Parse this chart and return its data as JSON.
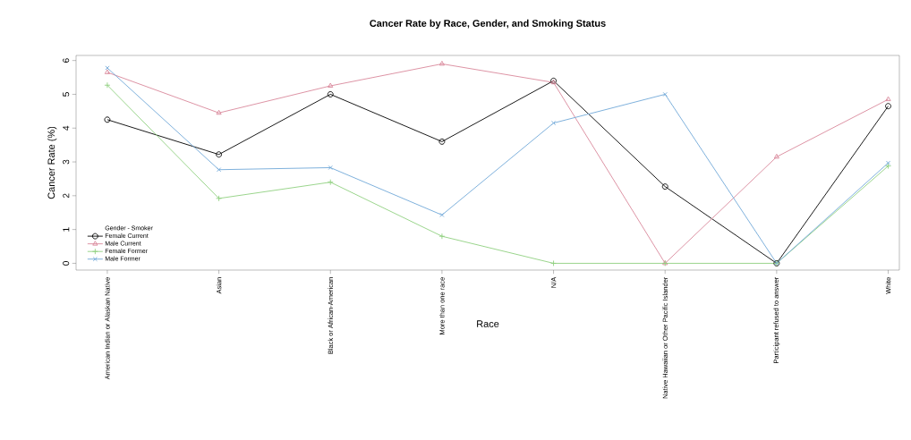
{
  "chart_data": {
    "type": "line",
    "title": "Cancer Rate by Race, Gender, and Smoking Status",
    "xlabel": "Race",
    "ylabel": "Cancer Rate (%)",
    "legend_title": "Gender - Smoker",
    "legend": "bottom left",
    "grid": false,
    "line_style": "solid",
    "categories": [
      "American Indian or Alaskan Native",
      "Asian",
      "Black or African-American",
      "More than one race",
      "N/A",
      "Native Hawaiian or Other Pacific Islander",
      "Participant refused to answer",
      "White"
    ],
    "ylim": [
      -0.2,
      6.15
    ],
    "yticks": [
      0,
      1,
      2,
      3,
      4,
      5,
      6
    ],
    "series": [
      {
        "name": "Female Current",
        "color": "#000000",
        "marker": "circle",
        "values": [
          4.25,
          3.22,
          5.0,
          3.6,
          5.4,
          2.27,
          0,
          4.65
        ]
      },
      {
        "name": "Male Current",
        "color": "#d9879a",
        "marker": "triangle",
        "values": [
          5.65,
          4.45,
          5.25,
          5.9,
          5.35,
          0,
          3.15,
          4.85
        ]
      },
      {
        "name": "Female Former",
        "color": "#8fd07f",
        "marker": "plus",
        "values": [
          5.27,
          1.92,
          2.4,
          0.8,
          0,
          0,
          0,
          2.88
        ]
      },
      {
        "name": "Male Former",
        "color": "#70a8d8",
        "marker": "cross",
        "values": [
          5.78,
          2.77,
          2.83,
          1.43,
          4.15,
          5.0,
          0,
          2.97
        ]
      }
    ]
  }
}
